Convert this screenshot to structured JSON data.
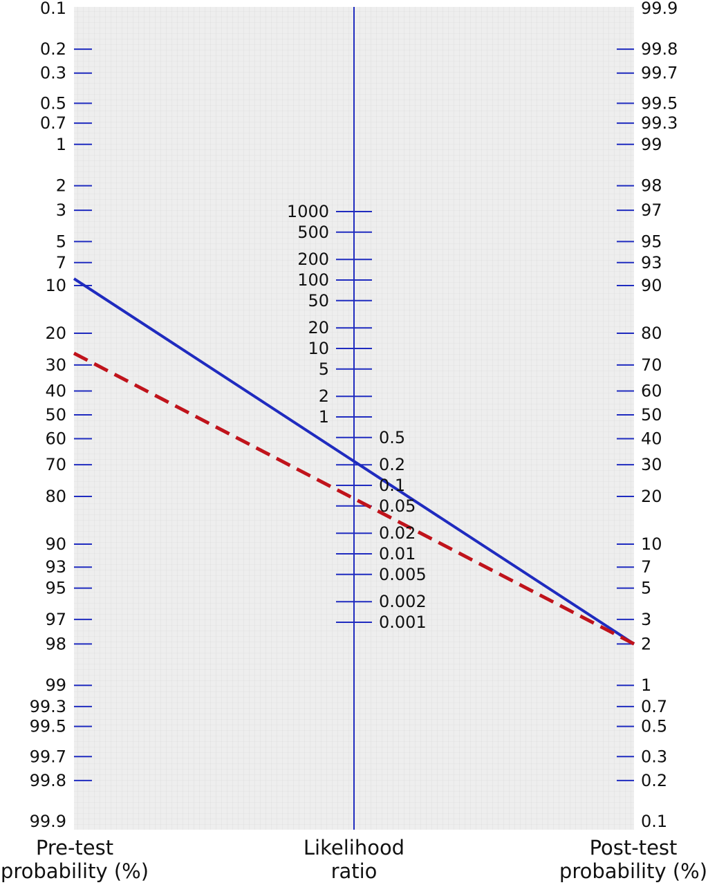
{
  "chart_data": {
    "type": "line",
    "title": "",
    "colors": {
      "axis": "#1f2bbf",
      "grid_background": "#eeeeee",
      "grid_line": "#d4d4d4",
      "solid_line": "#1f2bbf",
      "dashed_line": "#c0131b"
    },
    "axes": {
      "pretest": {
        "title": [
          "Pre-test",
          "probability (%)"
        ],
        "scale": "logit",
        "ticks": [
          "0.1",
          "0.2",
          "0.3",
          "0.5",
          "0.7",
          "1",
          "2",
          "3",
          "5",
          "7",
          "10",
          "20",
          "30",
          "40",
          "50",
          "60",
          "70",
          "80",
          "90",
          "93",
          "95",
          "97",
          "98",
          "99",
          "99.3",
          "99.5",
          "99.7",
          "99.8",
          "99.9"
        ]
      },
      "likelihood_ratio": {
        "title": [
          "Likelihood",
          "ratio"
        ],
        "scale": "log",
        "ticks": [
          "1000",
          "500",
          "200",
          "100",
          "50",
          "20",
          "10",
          "5",
          "2",
          "1",
          "0.5",
          "0.2",
          "0.1",
          "0.05",
          "0.02",
          "0.01",
          "0.005",
          "0.002",
          "0.001"
        ]
      },
      "posttest": {
        "title": [
          "Post-test",
          "probability (%)"
        ],
        "scale": "logit",
        "ticks": [
          "99.9",
          "99.8",
          "99.7",
          "99.5",
          "99.3",
          "99",
          "98",
          "97",
          "95",
          "93",
          "90",
          "80",
          "70",
          "60",
          "50",
          "40",
          "30",
          "20",
          "10",
          "7",
          "5",
          "3",
          "2",
          "1",
          "0.7",
          "0.5",
          "0.3",
          "0.2",
          "0.1"
        ]
      }
    },
    "series": [
      {
        "style": "solid",
        "pretest": 9,
        "likelihood_ratio": 0.2,
        "posttest": 2
      },
      {
        "style": "dashed",
        "pretest": 26,
        "likelihood_ratio": 0.06,
        "posttest": 2
      }
    ]
  }
}
